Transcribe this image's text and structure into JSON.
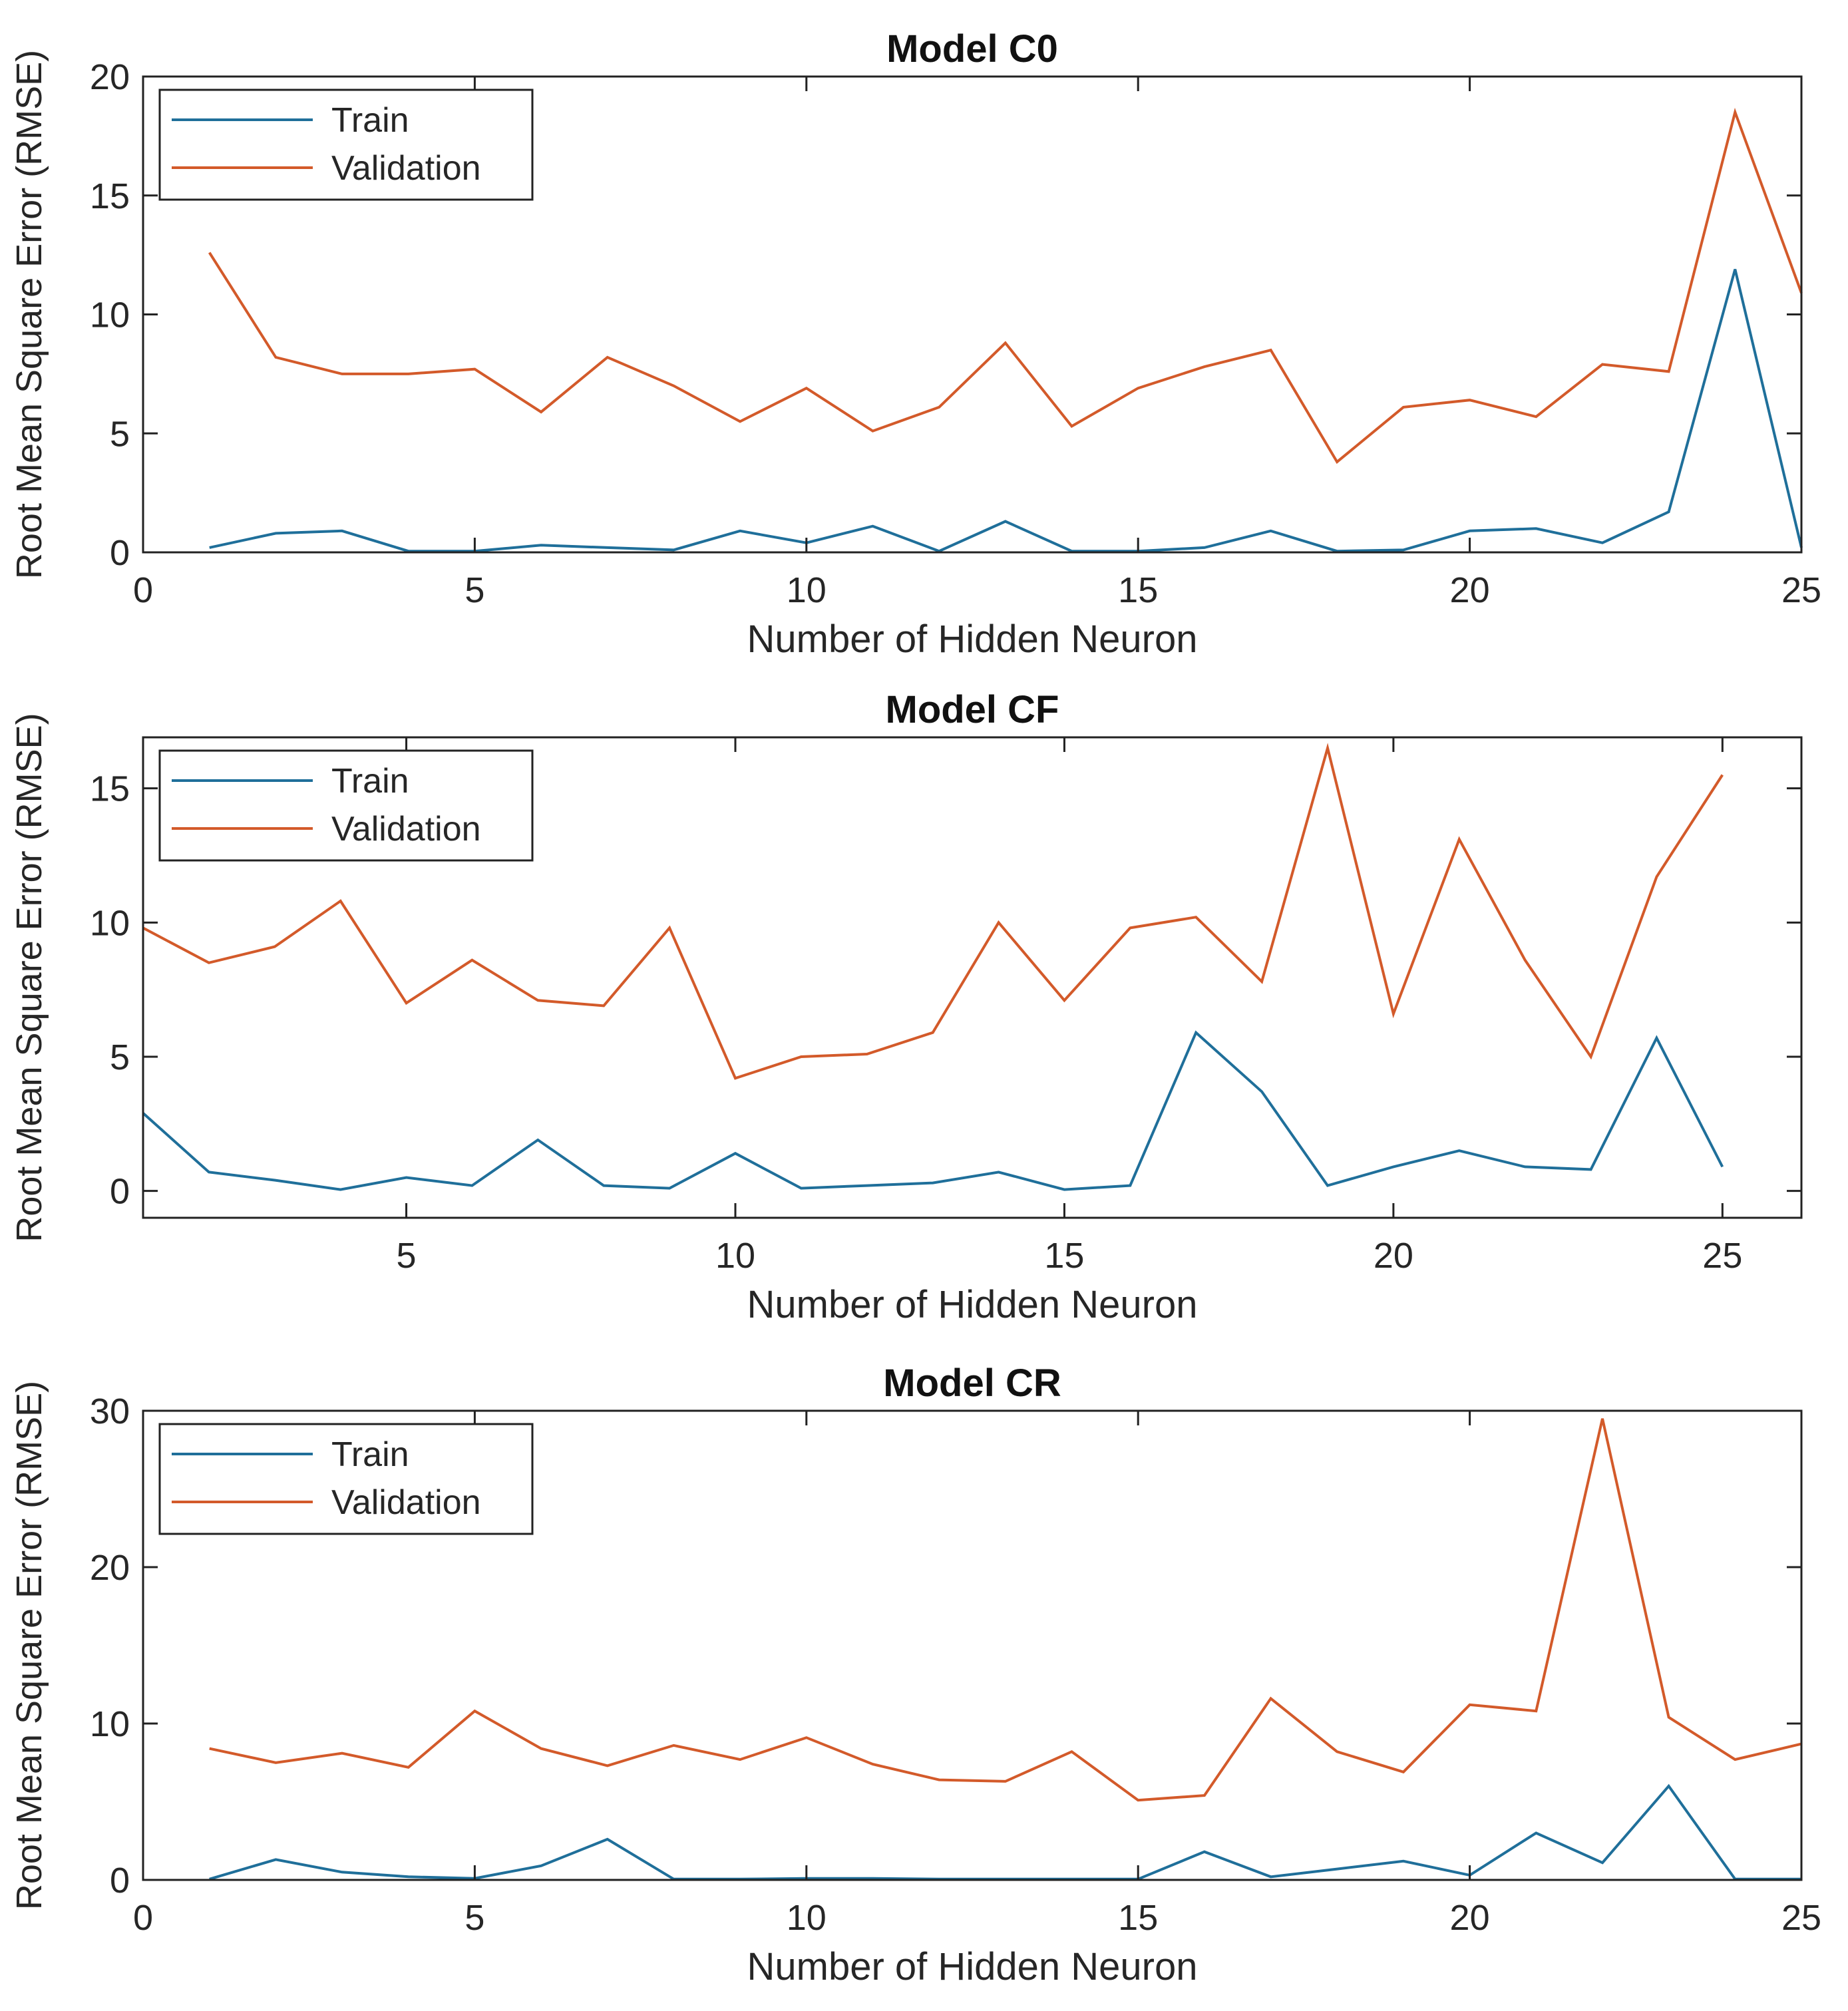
{
  "figure": {
    "colors": {
      "train": "#1f6f9a",
      "validation": "#d35a2a",
      "axis": "#222222",
      "text": "#262626"
    }
  },
  "chart_data": [
    {
      "type": "line",
      "title": "Model C0",
      "xlabel": "Number of Hidden Neuron",
      "ylabel": "Root Mean Square Error (RMSE)",
      "xlim": [
        0,
        25
      ],
      "ylim": [
        0,
        20
      ],
      "xticks": [
        0,
        5,
        10,
        15,
        20,
        25
      ],
      "yticks": [
        0,
        5,
        10,
        15,
        20
      ],
      "legend": {
        "position": "top-left",
        "entries": [
          "Train",
          "Validation"
        ]
      },
      "x": [
        1,
        2,
        3,
        4,
        5,
        6,
        7,
        8,
        9,
        10,
        11,
        12,
        13,
        14,
        15,
        16,
        17,
        18,
        19,
        20,
        21,
        22,
        23,
        24,
        25
      ],
      "series": [
        {
          "name": "Train",
          "values": [
            0.2,
            0.8,
            0.9,
            0.05,
            0.05,
            0.3,
            0.2,
            0.1,
            0.9,
            0.4,
            1.1,
            0.05,
            1.3,
            0.05,
            0.05,
            0.2,
            0.9,
            0.05,
            0.1,
            0.9,
            1.0,
            0.4,
            1.7,
            11.9,
            0.2
          ]
        },
        {
          "name": "Validation",
          "values": [
            12.6,
            8.2,
            7.5,
            7.5,
            7.7,
            5.9,
            8.2,
            7.0,
            5.5,
            6.9,
            5.1,
            6.1,
            8.8,
            5.3,
            6.9,
            7.8,
            8.5,
            3.8,
            6.1,
            6.4,
            5.7,
            7.9,
            7.6,
            18.5,
            10.9
          ]
        }
      ]
    },
    {
      "type": "line",
      "title": "Model CF",
      "xlabel": "Number of Hidden Neuron",
      "ylabel": "Root Mean Square Error (RMSE)",
      "xlim": [
        1,
        26.2
      ],
      "ylim": [
        -1,
        16.9
      ],
      "xticks": [
        5,
        10,
        15,
        20,
        25
      ],
      "yticks": [
        0,
        5,
        10,
        15
      ],
      "legend": {
        "position": "top-left",
        "entries": [
          "Train",
          "Validation"
        ]
      },
      "x": [
        1,
        2,
        3,
        4,
        5,
        6,
        7,
        8,
        9,
        10,
        11,
        12,
        13,
        14,
        15,
        16,
        17,
        18,
        19,
        20,
        21,
        22,
        23,
        24,
        25
      ],
      "series": [
        {
          "name": "Train",
          "values": [
            2.9,
            0.7,
            0.4,
            0.05,
            0.5,
            0.2,
            1.9,
            0.2,
            0.1,
            1.4,
            0.1,
            0.2,
            0.3,
            0.7,
            0.05,
            0.2,
            5.9,
            3.7,
            0.2,
            0.9,
            1.5,
            0.9,
            0.8,
            5.7,
            0.9
          ]
        },
        {
          "name": "Validation",
          "values": [
            9.8,
            8.5,
            9.1,
            10.8,
            7.0,
            8.6,
            7.1,
            6.9,
            9.8,
            4.2,
            5.0,
            5.1,
            5.9,
            10.0,
            7.1,
            9.8,
            10.2,
            7.8,
            16.5,
            6.6,
            13.1,
            8.6,
            5.0,
            11.7,
            15.5
          ]
        }
      ]
    },
    {
      "type": "line",
      "title": "Model CR",
      "xlabel": "Number of Hidden Neuron",
      "ylabel": "Root Mean Square Error (RMSE)",
      "xlim": [
        0,
        25
      ],
      "ylim": [
        0,
        30
      ],
      "xticks": [
        0,
        5,
        10,
        15,
        20,
        25
      ],
      "yticks": [
        0,
        10,
        20,
        30
      ],
      "legend": {
        "position": "top-left",
        "entries": [
          "Train",
          "Validation"
        ]
      },
      "x": [
        1,
        2,
        3,
        4,
        5,
        6,
        7,
        8,
        9,
        10,
        11,
        12,
        13,
        14,
        15,
        16,
        17,
        18,
        19,
        20,
        21,
        22,
        23,
        24,
        25
      ],
      "series": [
        {
          "name": "Train",
          "values": [
            0.05,
            1.3,
            0.5,
            0.2,
            0.1,
            0.9,
            2.6,
            0.05,
            0.05,
            0.1,
            0.1,
            0.05,
            0.05,
            0.05,
            0.05,
            1.8,
            0.2,
            0.7,
            1.2,
            0.3,
            3.0,
            1.1,
            6.0,
            0.05,
            0.05
          ]
        },
        {
          "name": "Validation",
          "values": [
            8.4,
            7.5,
            8.1,
            7.2,
            10.8,
            8.4,
            7.3,
            8.6,
            7.7,
            9.1,
            7.4,
            6.4,
            6.3,
            8.2,
            5.1,
            5.4,
            11.6,
            8.2,
            6.9,
            11.2,
            10.8,
            29.5,
            10.4,
            7.7,
            8.7
          ]
        }
      ]
    }
  ]
}
